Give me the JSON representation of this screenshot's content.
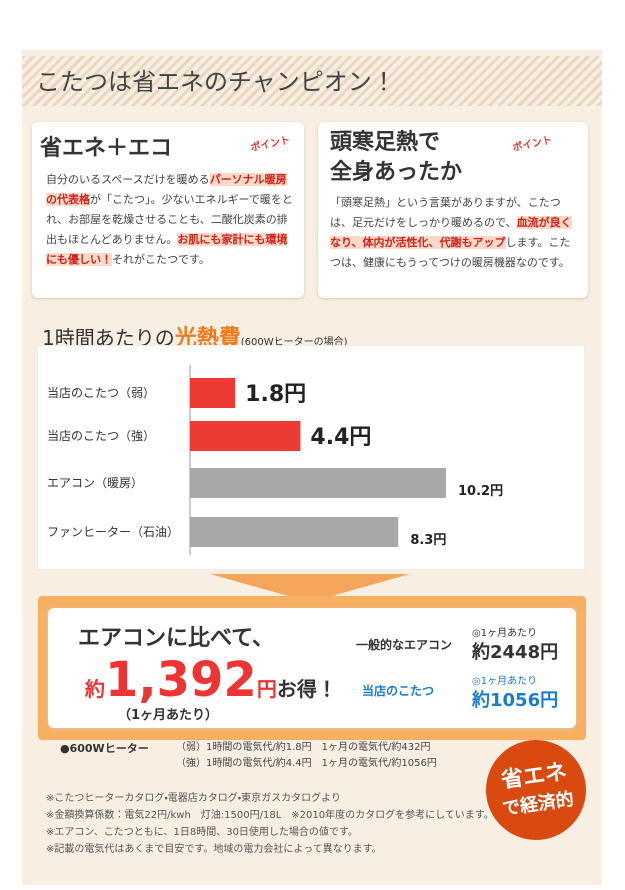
{
  "header": {
    "title": "こたつは省エネのチャンピオン！"
  },
  "box1": {
    "title": "省エネ＋エコ",
    "badge": "ポイント",
    "body": [
      {
        "text": "自分のいるスペースだけを暖める"
      },
      {
        "text": "パーソナル暖房の代表格",
        "style": "mark"
      },
      {
        "text": "が「こたつ」。少ないエネルギーで暖をとれ、お部屋を乾燥させることも、二酸化炭素の排出もほとんどありません。"
      },
      {
        "text": "お肌にも家計にも環境にも優しい！",
        "style": "mark"
      },
      {
        "text": "それがこたつです。"
      }
    ]
  },
  "box2": {
    "title": [
      "頭寒足熱で",
      "全身あったか"
    ],
    "badge": "ポイント",
    "body": [
      {
        "text": "「頭寒足熱」という言葉がありますが、こたつは、足元だけをしっかり暖めるので、"
      },
      {
        "text": "血流が良くなり、体内が活性化、代謝もアップ",
        "style": "mark"
      },
      {
        "text": "します。こたつは、健康にもうってつけの暖房機器なのです。"
      }
    ]
  },
  "chart_data": {
    "type": "bar",
    "orientation": "horizontal",
    "title": "1時間あたりの",
    "title_emphasis": "光熱費",
    "subtitle": "(600Wヒーターの場合)",
    "categories": [
      "当店のこたつ（弱）",
      "当店のこたつ（強）",
      "エアコン（暖房）",
      "ファンヒーター（石油）"
    ],
    "values": [
      1.8,
      4.4,
      10.2,
      8.3
    ],
    "value_labels": [
      "1.8円",
      "4.4円",
      "10.2円",
      "8.3円"
    ],
    "colors": [
      "#ee3a35",
      "#ee3a35",
      "#a8a8a8",
      "#a8a8a8"
    ]
  },
  "savings": {
    "lead": "エアコンに比べて、",
    "prefix": "約",
    "amount": "1,392",
    "unit": "円",
    "suffix": "お得！",
    "note": "（1ヶ月あたり）",
    "compare": [
      {
        "label": "一般的なエアコン",
        "period": "◎1ヶ月あたり",
        "price": "約2448円"
      },
      {
        "label": "当店のこたつ",
        "period": "◎1ヶ月あたり",
        "price": "約1056円"
      }
    ]
  },
  "heater": {
    "label": "●600Wヒーター",
    "rows": [
      [
        "（弱）1時間の電気代/約1.8円",
        "1ヶ月の電気代/約432円"
      ],
      [
        "（強）1時間の電気代/約4.4円",
        "1ヶ月の電気代/約1056円"
      ]
    ]
  },
  "badge": [
    "省エネ",
    "で経済的"
  ],
  "footnotes": [
    "※こたつヒーターカタログ・電器店カタログ・東京ガスカタログより",
    "※金額換算係数：電気22円/kwh　灯油:1500円/18L　※2010年度のカタログを参考にしています。",
    "※エアコン、こたつともに、1日8時間、30日使用した場合の値です。",
    "※記載の電気代はあくまで目安です。地域の電力会社によって異なります。"
  ]
}
